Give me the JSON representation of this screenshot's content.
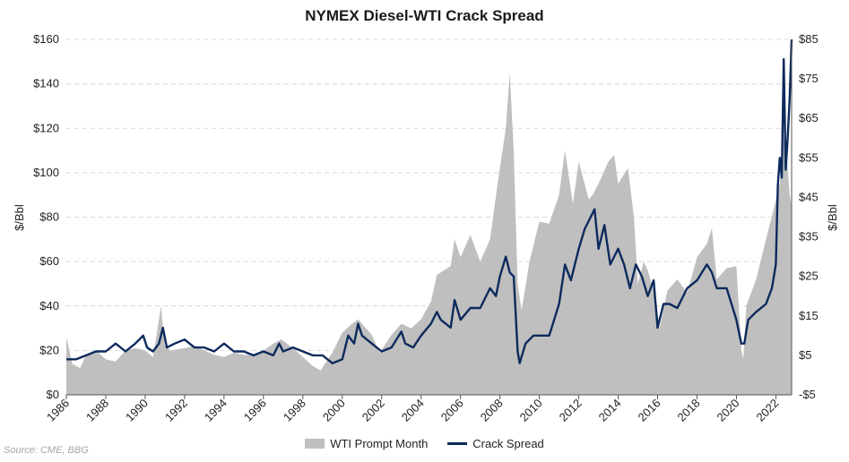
{
  "title": "NYMEX Diesel-WTI Crack Spread",
  "source": "Source: CME, BBG",
  "colors": {
    "area": "#bfbfbf",
    "line": "#0c2a5c",
    "grid": "#d9d9d9"
  },
  "chart_data": {
    "type": "line",
    "title": "NYMEX Diesel-WTI Crack Spread",
    "grid": true,
    "legend_position": "bottom",
    "ylabel_left": "$/Bbl",
    "ylabel_right": "$/Bbl",
    "ylim_left": [
      0,
      160
    ],
    "ylim_right": [
      -5,
      85
    ],
    "xlim": [
      1986,
      2022.8
    ],
    "yticks_left": [
      "$0",
      "$20",
      "$40",
      "$60",
      "$80",
      "$100",
      "$120",
      "$140",
      "$160"
    ],
    "yticks_right": [
      "-$5",
      "$5",
      "$15",
      "$25",
      "$35",
      "$45",
      "$55",
      "$65",
      "$75",
      "$85"
    ],
    "xticks": [
      "1986",
      "1988",
      "1990",
      "1992",
      "1994",
      "1996",
      "1998",
      "2000",
      "2002",
      "2004",
      "2006",
      "2008",
      "2010",
      "2012",
      "2014",
      "2016",
      "2018",
      "2020",
      "2022"
    ],
    "series": [
      {
        "name": "WTI Prompt Month",
        "type": "area",
        "axis": "left",
        "x": [
          1986.0,
          1986.3,
          1986.7,
          1987.0,
          1987.5,
          1988.0,
          1988.5,
          1989.0,
          1989.5,
          1990.0,
          1990.4,
          1990.6,
          1990.8,
          1991.0,
          1991.3,
          1992.0,
          1992.5,
          1993.0,
          1993.5,
          1994.0,
          1994.5,
          1995.0,
          1995.5,
          1996.0,
          1996.5,
          1996.9,
          1997.5,
          1998.0,
          1998.5,
          1998.9,
          1999.5,
          2000.0,
          2000.5,
          2000.8,
          2001.5,
          2001.9,
          2002.5,
          2003.0,
          2003.5,
          2004.0,
          2004.5,
          2004.8,
          2005.5,
          2005.7,
          2006.0,
          2006.5,
          2007.0,
          2007.5,
          2007.9,
          2008.3,
          2008.5,
          2008.7,
          2008.9,
          2009.1,
          2009.5,
          2010.0,
          2010.5,
          2011.0,
          2011.3,
          2011.7,
          2012.0,
          2012.5,
          2012.7,
          2013.0,
          2013.5,
          2013.8,
          2014.0,
          2014.5,
          2014.8,
          2015.0,
          2015.3,
          2015.5,
          2015.9,
          2016.1,
          2016.5,
          2017.0,
          2017.5,
          2018.0,
          2018.5,
          2018.75,
          2019.0,
          2019.5,
          2020.0,
          2020.25,
          2020.35,
          2020.5,
          2021.0,
          2021.5,
          2021.9,
          2022.2,
          2022.45,
          2022.7,
          2022.8
        ],
        "values": [
          26,
          14,
          12,
          18,
          20,
          16,
          15,
          20,
          21,
          20,
          17,
          28,
          40,
          22,
          20,
          21,
          22,
          20,
          18,
          17,
          19,
          18,
          18,
          20,
          23,
          25,
          21,
          17,
          13,
          11,
          19,
          28,
          32,
          34,
          27,
          19,
          27,
          32,
          30,
          34,
          42,
          54,
          58,
          70,
          62,
          72,
          60,
          70,
          96,
          120,
          145,
          110,
          50,
          38,
          60,
          78,
          77,
          90,
          110,
          86,
          105,
          88,
          90,
          95,
          105,
          108,
          95,
          102,
          80,
          50,
          60,
          56,
          44,
          30,
          47,
          52,
          46,
          62,
          68,
          75,
          52,
          57,
          58,
          20,
          16,
          40,
          52,
          70,
          84,
          95,
          120,
          90,
          85
        ]
      },
      {
        "name": "Crack Spread",
        "type": "line",
        "axis": "right",
        "x": [
          1986.0,
          1986.4,
          1986.5,
          1987.0,
          1987.5,
          1988.0,
          1988.5,
          1989.0,
          1989.5,
          1989.9,
          1990.1,
          1990.4,
          1990.7,
          1990.9,
          1991.1,
          1991.5,
          1992.0,
          1992.5,
          1993.0,
          1993.5,
          1994.0,
          1994.5,
          1995.0,
          1995.5,
          1996.0,
          1996.5,
          1996.8,
          1997.0,
          1997.5,
          1998.0,
          1998.5,
          1999.0,
          1999.5,
          2000.0,
          2000.3,
          2000.6,
          2000.8,
          2001.0,
          2001.5,
          2002.0,
          2002.5,
          2003.0,
          2003.2,
          2003.6,
          2004.0,
          2004.5,
          2004.8,
          2005.0,
          2005.5,
          2005.7,
          2006.0,
          2006.5,
          2007.0,
          2007.5,
          2007.8,
          2008.0,
          2008.3,
          2008.5,
          2008.7,
          2008.9,
          2009.0,
          2009.3,
          2009.7,
          2010.0,
          2010.5,
          2011.0,
          2011.3,
          2011.6,
          2012.0,
          2012.3,
          2012.6,
          2012.8,
          2013.0,
          2013.3,
          2013.6,
          2014.0,
          2014.3,
          2014.6,
          2014.9,
          2015.2,
          2015.5,
          2015.8,
          2016.0,
          2016.3,
          2016.6,
          2017.0,
          2017.5,
          2018.0,
          2018.5,
          2018.75,
          2019.0,
          2019.5,
          2020.0,
          2020.25,
          2020.4,
          2020.6,
          2021.0,
          2021.5,
          2021.8,
          2022.0,
          2022.1,
          2022.2,
          2022.3,
          2022.4,
          2022.5,
          2022.6,
          2022.7,
          2022.8
        ],
        "values": [
          4,
          4,
          4,
          5,
          6,
          6,
          8,
          6,
          8,
          10,
          7,
          6,
          8,
          12,
          7,
          8,
          9,
          7,
          7,
          6,
          8,
          6,
          6,
          5,
          6,
          5,
          8,
          6,
          7,
          6,
          5,
          5,
          3,
          4,
          10,
          8,
          13,
          10,
          8,
          6,
          7,
          11,
          8,
          7,
          10,
          13,
          16,
          14,
          12,
          19,
          14,
          17,
          17,
          22,
          20,
          25,
          30,
          26,
          25,
          6,
          3,
          8,
          10,
          10,
          10,
          18,
          28,
          24,
          32,
          37,
          40,
          42,
          32,
          38,
          28,
          32,
          28,
          22,
          28,
          25,
          20,
          24,
          12,
          18,
          18,
          17,
          22,
          24,
          28,
          26,
          22,
          22,
          14,
          8,
          8,
          14,
          16,
          18,
          22,
          28,
          48,
          55,
          50,
          80,
          52,
          60,
          70,
          85
        ]
      }
    ]
  }
}
